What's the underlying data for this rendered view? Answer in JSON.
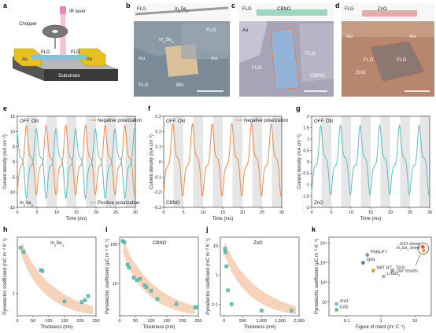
{
  "panels": {
    "a": {
      "letter": "a",
      "chopper": "Chopper",
      "laser": "IR laser",
      "au_left": "Au",
      "au_right": "Au",
      "flg1": "FLG",
      "flg2": "FLG",
      "substrate": "Substrate"
    },
    "b": {
      "letter": "b",
      "flg_top": "FLG",
      "in2se3_top": "In",
      "in2se3_sub": "2",
      "in2se3_tail": "Se",
      "in2se3_sub2": "3",
      "in2se3": "In",
      "sub": "2",
      "se": "Se",
      "sub2": "3",
      "flg_a": "FLG",
      "flg_b": "FLG",
      "au_a": "Au",
      "au_b": "Au",
      "bn": "BN"
    },
    "c": {
      "letter": "c",
      "flg_top": "FLG",
      "cbno_top": "CBNO",
      "au": "Au",
      "flg_a": "FLG",
      "flg_b": "FLG",
      "cbno": "CBNO"
    },
    "d": {
      "letter": "d",
      "flg_top": "FLG",
      "zno_top": "ZnO",
      "au_a": "Au",
      "au_b": "Au",
      "flg_a": "FLG",
      "flg_b": "FLG",
      "zno": "ZnO"
    }
  },
  "colors": {
    "orange": "#f08a4b",
    "teal": "#5bbfc4",
    "band": "#e6e6e6",
    "arrow": "#f8d3bc",
    "marker": "#5fc6b8"
  },
  "chart_data": [
    {
      "id": "e",
      "type": "line",
      "letter": "e",
      "xlabel": "Time (ms)",
      "ylabel": "Current density (mA cm⁻²)",
      "xlim": [
        0,
        30
      ],
      "ylim": [
        -15,
        15
      ],
      "xticks": [
        0,
        5,
        10,
        15,
        20,
        25,
        30
      ],
      "yticks": [
        -15,
        -10,
        -5,
        0,
        5,
        10,
        15
      ],
      "off_label": "OFF",
      "on_label": "ON",
      "sample": "In",
      "sample_sub": "2",
      "sample_se": "Se",
      "sample_sub2": "3",
      "series": [
        {
          "name": "Negative polarization",
          "color": "#f08a4b",
          "amp": 12,
          "phase": 0
        },
        {
          "name": "Positive polarization",
          "color": "#5bbfc4",
          "amp": 12,
          "phase": 1
        }
      ]
    },
    {
      "id": "f",
      "type": "line",
      "letter": "f",
      "xlabel": "Time (ms)",
      "ylabel": "Current density (mA cm⁻²)",
      "xlim": [
        0,
        30
      ],
      "ylim": [
        -0.3,
        0.3
      ],
      "xticks": [
        0,
        5,
        10,
        15,
        20,
        25,
        30
      ],
      "yticks": [
        -0.3,
        -0.2,
        -0.1,
        0,
        0.1,
        0.2,
        0.3
      ],
      "off_label": "OFF",
      "on_label": "ON",
      "sample": "CBNO",
      "series": [
        {
          "name": "Negative polarization",
          "color": "#f08a4b",
          "amp": 0.25,
          "phase": 0
        }
      ]
    },
    {
      "id": "g",
      "type": "line",
      "letter": "g",
      "xlabel": "Time (ms)",
      "ylabel": "Current density (mA cm⁻²)",
      "xlim": [
        0,
        30
      ],
      "ylim": [
        -2,
        2
      ],
      "xticks": [
        0,
        5,
        10,
        15,
        20,
        25,
        30
      ],
      "yticks": [
        -2,
        -1.5,
        -1,
        -0.5,
        0,
        0.5,
        1,
        1.5,
        2
      ],
      "off_label": "OFF",
      "on_label": "ON",
      "sample": "ZnO",
      "series": [
        {
          "name": "ZnO",
          "color": "#5bbfc4",
          "amp": 1.6,
          "phase": 0
        }
      ]
    },
    {
      "id": "h",
      "type": "scatter",
      "letter": "h",
      "title": "In",
      "title_sub": "2",
      "title_se": "Se",
      "title_sub2": "3",
      "xlabel": "Thickness (nm)",
      "ylabel": "Pyroelectric coefficient (mC m⁻² K⁻¹)",
      "xlim": [
        0,
        250
      ],
      "ylim_log": [
        0.4,
        10
      ],
      "xticks": [
        0,
        50,
        100,
        150,
        200,
        250
      ],
      "yticks": [
        1
      ],
      "x": [
        10,
        20,
        75,
        80,
        150,
        205,
        215,
        225
      ],
      "y": [
        6.5,
        5.5,
        2.6,
        2.5,
        0.72,
        0.7,
        0.76,
        0.9
      ]
    },
    {
      "id": "i",
      "type": "scatter",
      "letter": "i",
      "title": "CBNO",
      "xlabel": "Thickness (nm)",
      "ylabel": "Pyroelectric coefficient (μC m⁻² K⁻¹)",
      "xlim": [
        0,
        250
      ],
      "ylim_log": [
        1.5,
        150
      ],
      "xticks": [
        0,
        50,
        100,
        150,
        200,
        250
      ],
      "yticks": [
        10,
        100
      ],
      "x": [
        10,
        15,
        25,
        30,
        45,
        55,
        65,
        80,
        85,
        100,
        120,
        180,
        240,
        245
      ],
      "y": [
        120,
        110,
        30,
        25,
        14,
        12,
        13,
        9,
        8,
        6.5,
        4,
        3,
        2.5,
        2.4
      ]
    },
    {
      "id": "j",
      "type": "scatter",
      "letter": "j",
      "title": "ZnO",
      "xlabel": "Thickness (nm)",
      "ylabel": "Pyroelectric coefficient (mC m⁻² K⁻¹)",
      "xlim": [
        -100,
        2000
      ],
      "ylim_log": [
        0.04,
        20
      ],
      "xticks": [
        0,
        500,
        1000,
        1500,
        2000
      ],
      "xticklabels": [
        "0",
        "500",
        "1,000",
        "1,500",
        "2,000"
      ],
      "yticks": [
        0.1,
        1,
        10
      ],
      "x": [
        20,
        30,
        60,
        100,
        200,
        1000,
        1800
      ],
      "y": [
        8,
        6,
        2,
        0.3,
        0.1,
        0.06,
        0.06
      ]
    },
    {
      "id": "k",
      "type": "scatter",
      "letter": "k",
      "xlabel": "Figure of merit (m² C⁻¹)",
      "ylabel": "Pyroelectric coefficient (μC m⁻² K⁻¹)",
      "xlim_log": [
        0.03,
        30
      ],
      "ylim_log": [
        2,
        20000
      ],
      "xticks": [
        0.1,
        1,
        10
      ],
      "yticks": [
        10,
        100,
        1000,
        10000
      ],
      "ytick_labels": [
        "10",
        "10²",
        "10³",
        "10⁴"
      ],
      "points": [
        {
          "label": "PMN-PT",
          "x": 0.4,
          "y": 2500,
          "color": "#8e8ec8"
        },
        {
          "label": "SBN",
          "x": 0.3,
          "y": 1000,
          "color": "#5a7fa8"
        },
        {
          "label": "NBT-BT",
          "x": 0.6,
          "y": 400,
          "color": "#caa040"
        },
        {
          "label": "TGS",
          "x": 2.2,
          "y": 400,
          "color": "#9c9c9c"
        },
        {
          "label": "LiTaO",
          "sub": "3",
          "x": 1.2,
          "y": 200,
          "color": "#c8a0c8"
        },
        {
          "label": "ZnO",
          "x": 0.05,
          "y": 8,
          "color": "#80b8e0"
        },
        {
          "label": "CdS",
          "x": 0.05,
          "y": 4,
          "color": "#60c090"
        },
        {
          "label": "ZnO sheet",
          "x": 17,
          "y": 6500,
          "color": "#e06030"
        },
        {
          "label": "In",
          "sub": "2",
          "tail": "Se",
          "sub2": "3",
          "tail2": " sheet",
          "x": 18,
          "y": 4200,
          "color": "#f0a030"
        }
      ],
      "annotation": "Our results"
    }
  ]
}
